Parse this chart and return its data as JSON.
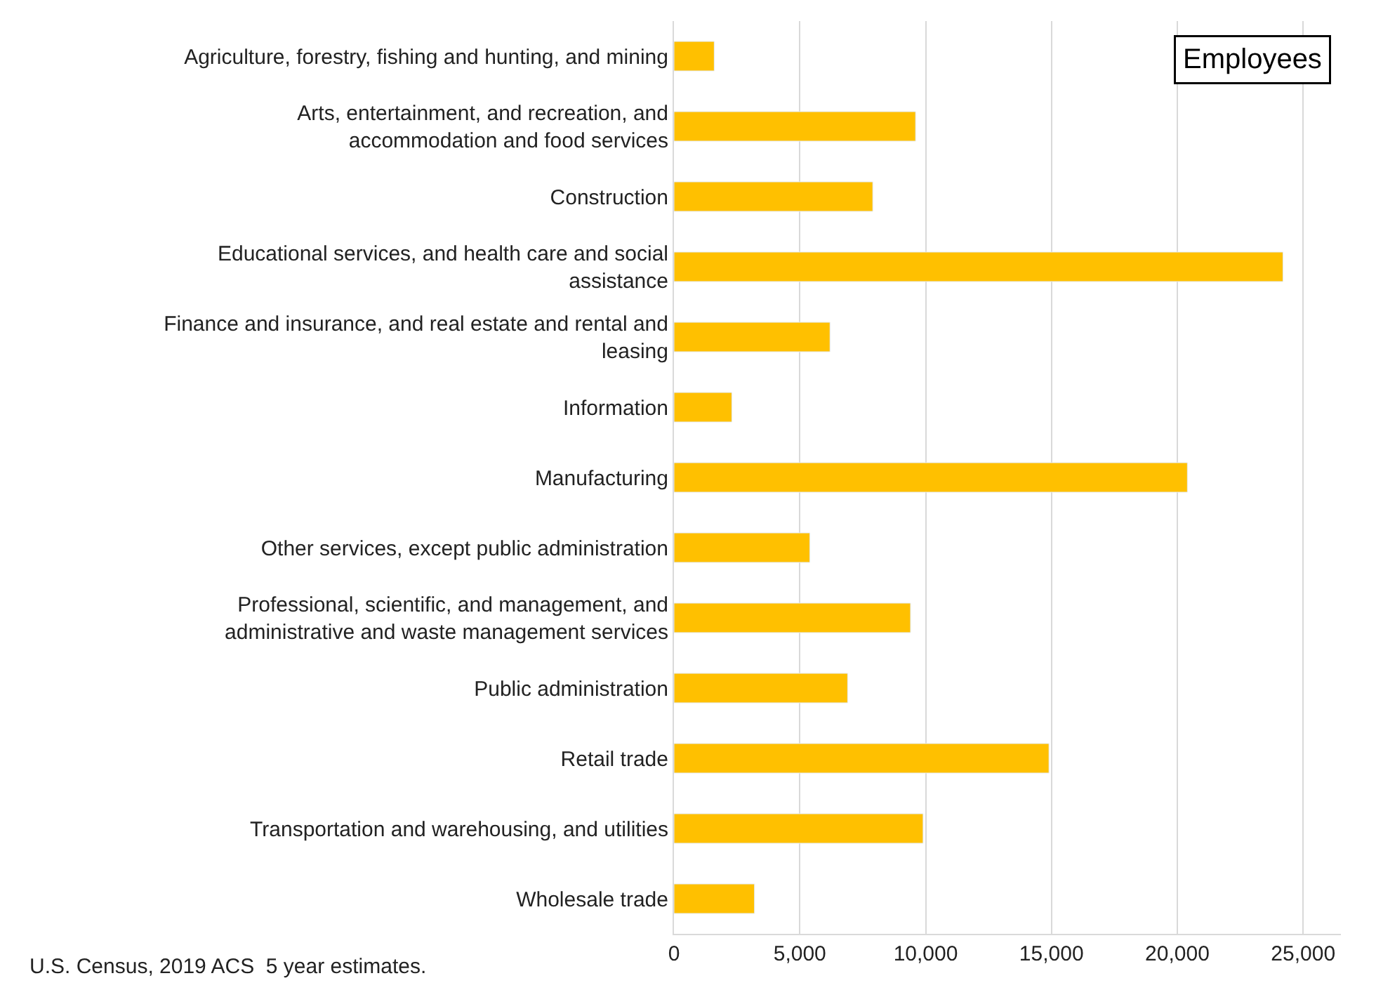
{
  "chart_data": {
    "type": "bar",
    "orientation": "horizontal",
    "title": "Employees",
    "categories": [
      "Agriculture, forestry, fishing and hunting, and mining",
      "Arts, entertainment, and recreation, and\naccommodation and food services",
      "Construction",
      "Educational services, and health care and social\nassistance",
      "Finance and insurance, and real estate and rental and\nleasing",
      "Information",
      "Manufacturing",
      "Other services, except public administration",
      "Professional, scientific, and management, and\nadministrative and waste management services",
      "Public administration",
      "Retail trade",
      "Transportation and warehousing, and utilities",
      "Wholesale trade"
    ],
    "values": [
      1600,
      9600,
      7900,
      24200,
      6200,
      2300,
      20400,
      5400,
      9400,
      6900,
      14900,
      9900,
      3200
    ],
    "color": "#ffc000",
    "xlim": [
      0,
      26500
    ],
    "xticks": [
      0,
      {
        "value": 5000,
        "label": "5,000"
      },
      {
        "value": 10000,
        "label": "10,000"
      },
      {
        "value": 15000,
        "label": "15,000"
      },
      {
        "value": 20000,
        "label": "20,000"
      },
      {
        "value": 25000,
        "label": "25,000"
      }
    ],
    "grid": "x",
    "annotations": [
      "U.S. Census, 2019 ACS  5 year estimates."
    ]
  }
}
